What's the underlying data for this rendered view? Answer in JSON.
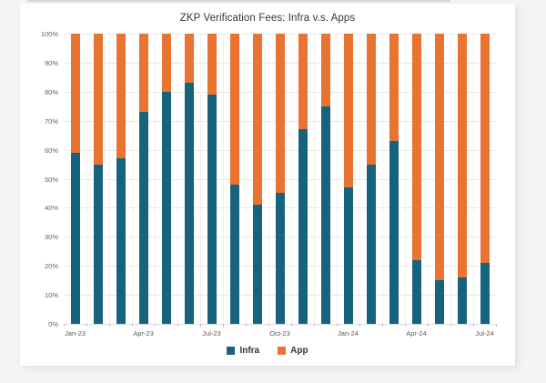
{
  "page": {
    "background": "#f4f4f5",
    "card_background": "#ffffff"
  },
  "chart_data": {
    "type": "bar",
    "stacked": true,
    "percent_stacked": true,
    "title": "ZKP Verification Fees: Infra v.s. Apps",
    "categories": [
      "Jan-23",
      "Feb-23",
      "Mar-23",
      "Apr-23",
      "May-23",
      "Jun-23",
      "Jul-23",
      "Aug-23",
      "Sep-23",
      "Oct-23",
      "Nov-23",
      "Dec-23",
      "Jan-24",
      "Feb-24",
      "Mar-24",
      "Apr-24",
      "May-24",
      "Jun-24",
      "Jul-24"
    ],
    "series": [
      {
        "name": "Infra",
        "color": "#17637E",
        "values": [
          59,
          55,
          57,
          73,
          80,
          83,
          79,
          48,
          41,
          45,
          67,
          75,
          47,
          55,
          63,
          22,
          15,
          16,
          21
        ]
      },
      {
        "name": "App",
        "color": "#E97330",
        "values": [
          41,
          45,
          43,
          27,
          20,
          17,
          21,
          52,
          59,
          55,
          33,
          25,
          53,
          45,
          37,
          78,
          85,
          84,
          79
        ]
      }
    ],
    "xlabel": "",
    "ylabel": "",
    "ylim": [
      0,
      100
    ],
    "y_tick_step": 10,
    "y_tick_suffix": "%",
    "y_tick_labels": [
      "0%",
      "10%",
      "20%",
      "30%",
      "40%",
      "50%",
      "60%",
      "70%",
      "80%",
      "90%",
      "100%"
    ],
    "x_tick_labels": [
      "Jan-23",
      "Apr-23",
      "Jul-23",
      "Oct-23",
      "Jan-24",
      "Apr-24",
      "Jul-24"
    ],
    "x_tick_every": 3,
    "grid": true,
    "legend_position": "bottom"
  },
  "legend": {
    "items": [
      {
        "label": "Infra",
        "color": "#17637E"
      },
      {
        "label": "App",
        "color": "#E97330"
      }
    ]
  }
}
